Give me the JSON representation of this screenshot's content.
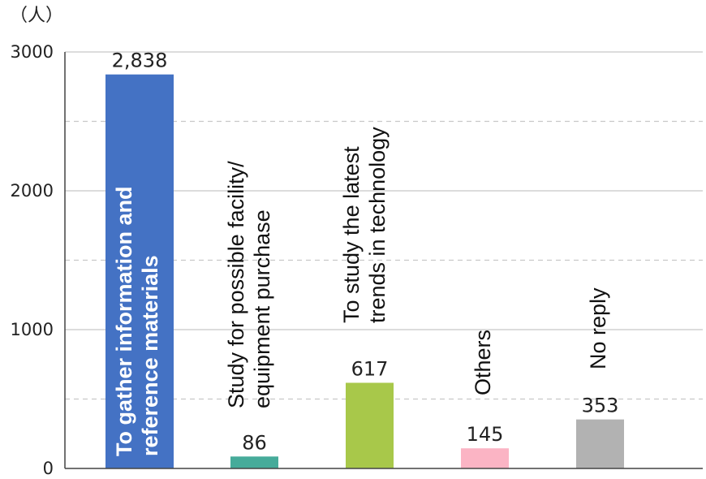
{
  "chart_data": {
    "type": "bar",
    "unit_label": "（人）",
    "ylim": [
      0,
      3000
    ],
    "yticks": [
      0,
      1000,
      2000,
      3000
    ],
    "grid": true,
    "legend": "none",
    "categories": [
      [
        "To gather information and",
        "reference materials"
      ],
      [
        "Study for possible facility/",
        "equipment purchase"
      ],
      [
        "To study the latest",
        "trends in technology"
      ],
      [
        "Others"
      ],
      [
        "No reply"
      ]
    ],
    "values": [
      2838,
      86,
      617,
      145,
      353
    ],
    "value_labels": [
      "2,838",
      "86",
      "617",
      "145",
      "353"
    ],
    "colors": [
      "#4472c4",
      "#46ab9a",
      "#a8c84a",
      "#fbb4c4",
      "#b2b2b2"
    ]
  }
}
